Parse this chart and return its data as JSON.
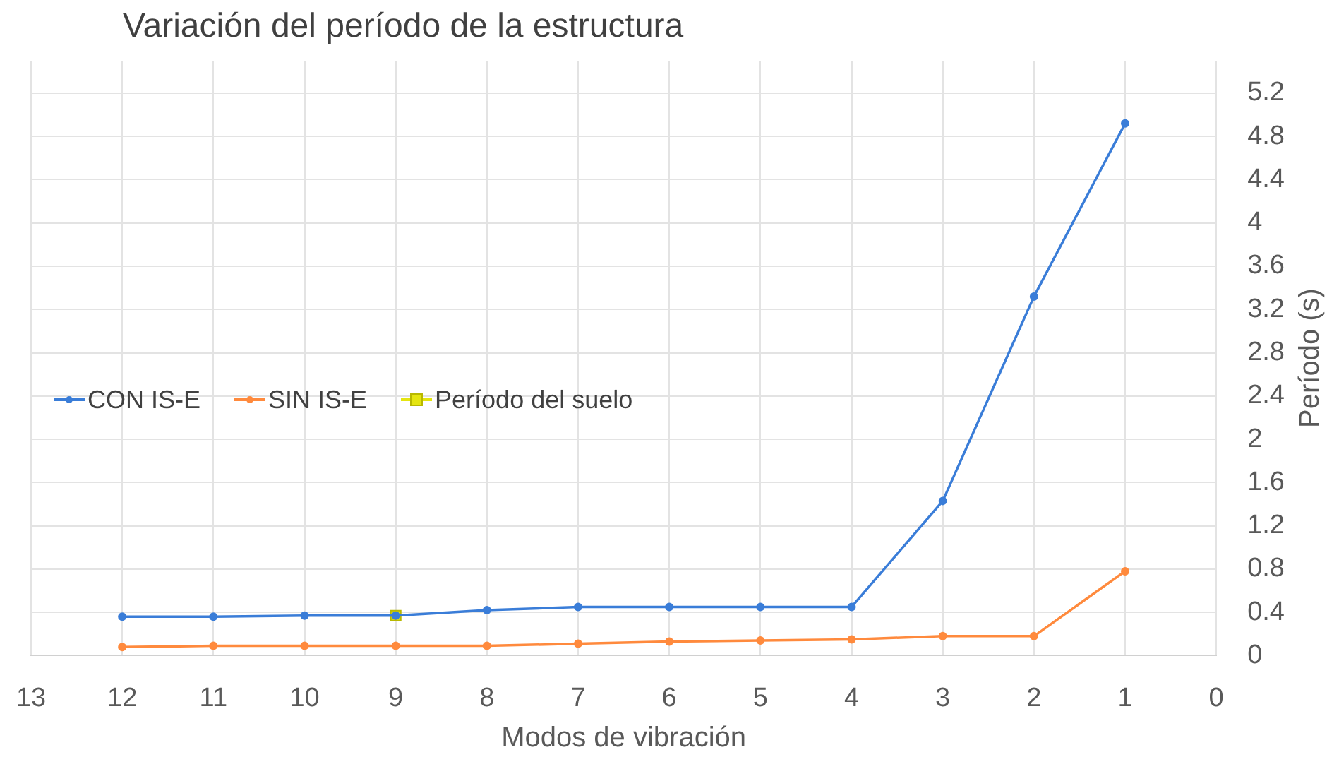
{
  "chart_data": {
    "type": "line",
    "title": "Variación del período de la estructura",
    "xlabel": "Modos de vibración",
    "ylabel": "Período (s)",
    "x": [
      12,
      11,
      10,
      9,
      8,
      7,
      6,
      5,
      4,
      3,
      2,
      1
    ],
    "series": [
      {
        "name": "CON IS-E",
        "color": "#3a7dd8",
        "values": [
          0.36,
          0.36,
          0.37,
          0.37,
          0.42,
          0.45,
          0.45,
          0.45,
          0.45,
          1.43,
          3.32,
          4.92
        ]
      },
      {
        "name": "SIN IS-E",
        "color": "#ff8a3d",
        "values": [
          0.08,
          0.09,
          0.09,
          0.09,
          0.09,
          0.11,
          0.13,
          0.14,
          0.15,
          0.18,
          0.18,
          0.78
        ]
      },
      {
        "name": "Período del suelo",
        "color": "#e5e510",
        "marker": "square",
        "x": [
          9
        ],
        "values": [
          0.37
        ]
      }
    ],
    "xlim": [
      13,
      0
    ],
    "xticks": [
      13,
      12,
      11,
      10,
      9,
      8,
      7,
      6,
      5,
      4,
      3,
      2,
      1,
      0
    ],
    "ylim": [
      0,
      5.5
    ],
    "yticks": [
      0,
      0.4,
      0.8,
      1.2,
      1.6,
      2,
      2.4,
      2.8,
      3.2,
      3.6,
      4,
      4.4,
      4.8,
      5.2
    ],
    "grid": true,
    "legend": "left",
    "marker": "circle",
    "line_style": "solid"
  }
}
